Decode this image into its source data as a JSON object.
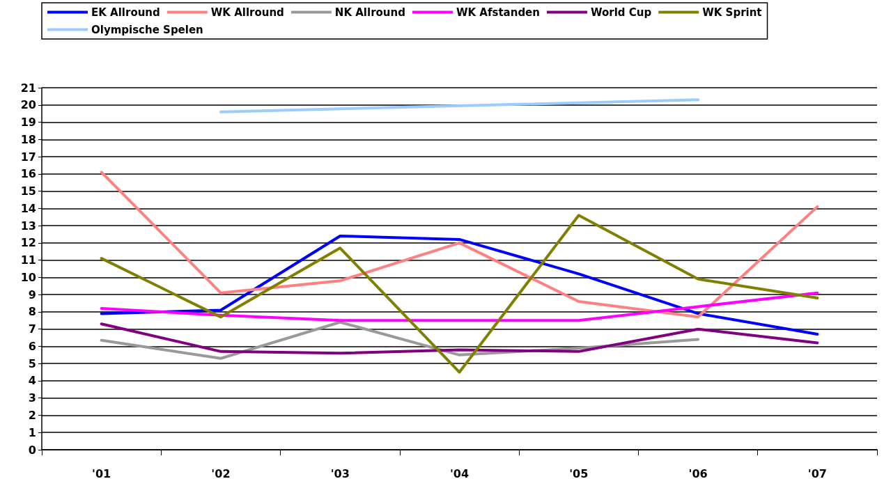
{
  "chart_data": {
    "type": "line",
    "categories": [
      "'01",
      "'02",
      "'03",
      "'04",
      "'05",
      "'06",
      "'07"
    ],
    "series": [
      {
        "name": "EK Allround",
        "color": "#0000ff",
        "values": [
          7.9,
          8.1,
          12.4,
          12.2,
          10.2,
          7.9,
          6.7
        ]
      },
      {
        "name": "WK Allround",
        "color": "#ff8080",
        "values": [
          16.1,
          9.1,
          9.8,
          12.0,
          8.6,
          7.7,
          14.1
        ]
      },
      {
        "name": "NK Allround",
        "color": "#999999",
        "values": [
          6.35,
          5.3,
          7.4,
          5.5,
          5.9,
          6.4,
          null
        ]
      },
      {
        "name": "WK Afstanden",
        "color": "#ff00ff",
        "values": [
          8.2,
          7.8,
          7.5,
          7.5,
          7.5,
          8.3,
          9.1
        ]
      },
      {
        "name": "World Cup",
        "color": "#800080",
        "values": [
          7.3,
          5.7,
          5.6,
          5.8,
          5.7,
          7.0,
          6.2
        ]
      },
      {
        "name": "WK Sprint",
        "color": "#808000",
        "values": [
          11.1,
          7.7,
          11.7,
          4.5,
          13.6,
          9.9,
          8.8
        ]
      },
      {
        "name": "Olympische Spelen",
        "color": "#99ccff",
        "x": [
          "'02",
          "'06"
        ],
        "values": [
          19.6,
          20.3
        ]
      }
    ],
    "ylim": [
      0,
      21
    ],
    "yticks": [
      0,
      1,
      2,
      3,
      4,
      5,
      6,
      7,
      8,
      9,
      10,
      11,
      12,
      13,
      14,
      15,
      16,
      17,
      18,
      19,
      20,
      21
    ],
    "grid": "y",
    "legend": "top",
    "marker": "none",
    "line_style": "solid"
  }
}
